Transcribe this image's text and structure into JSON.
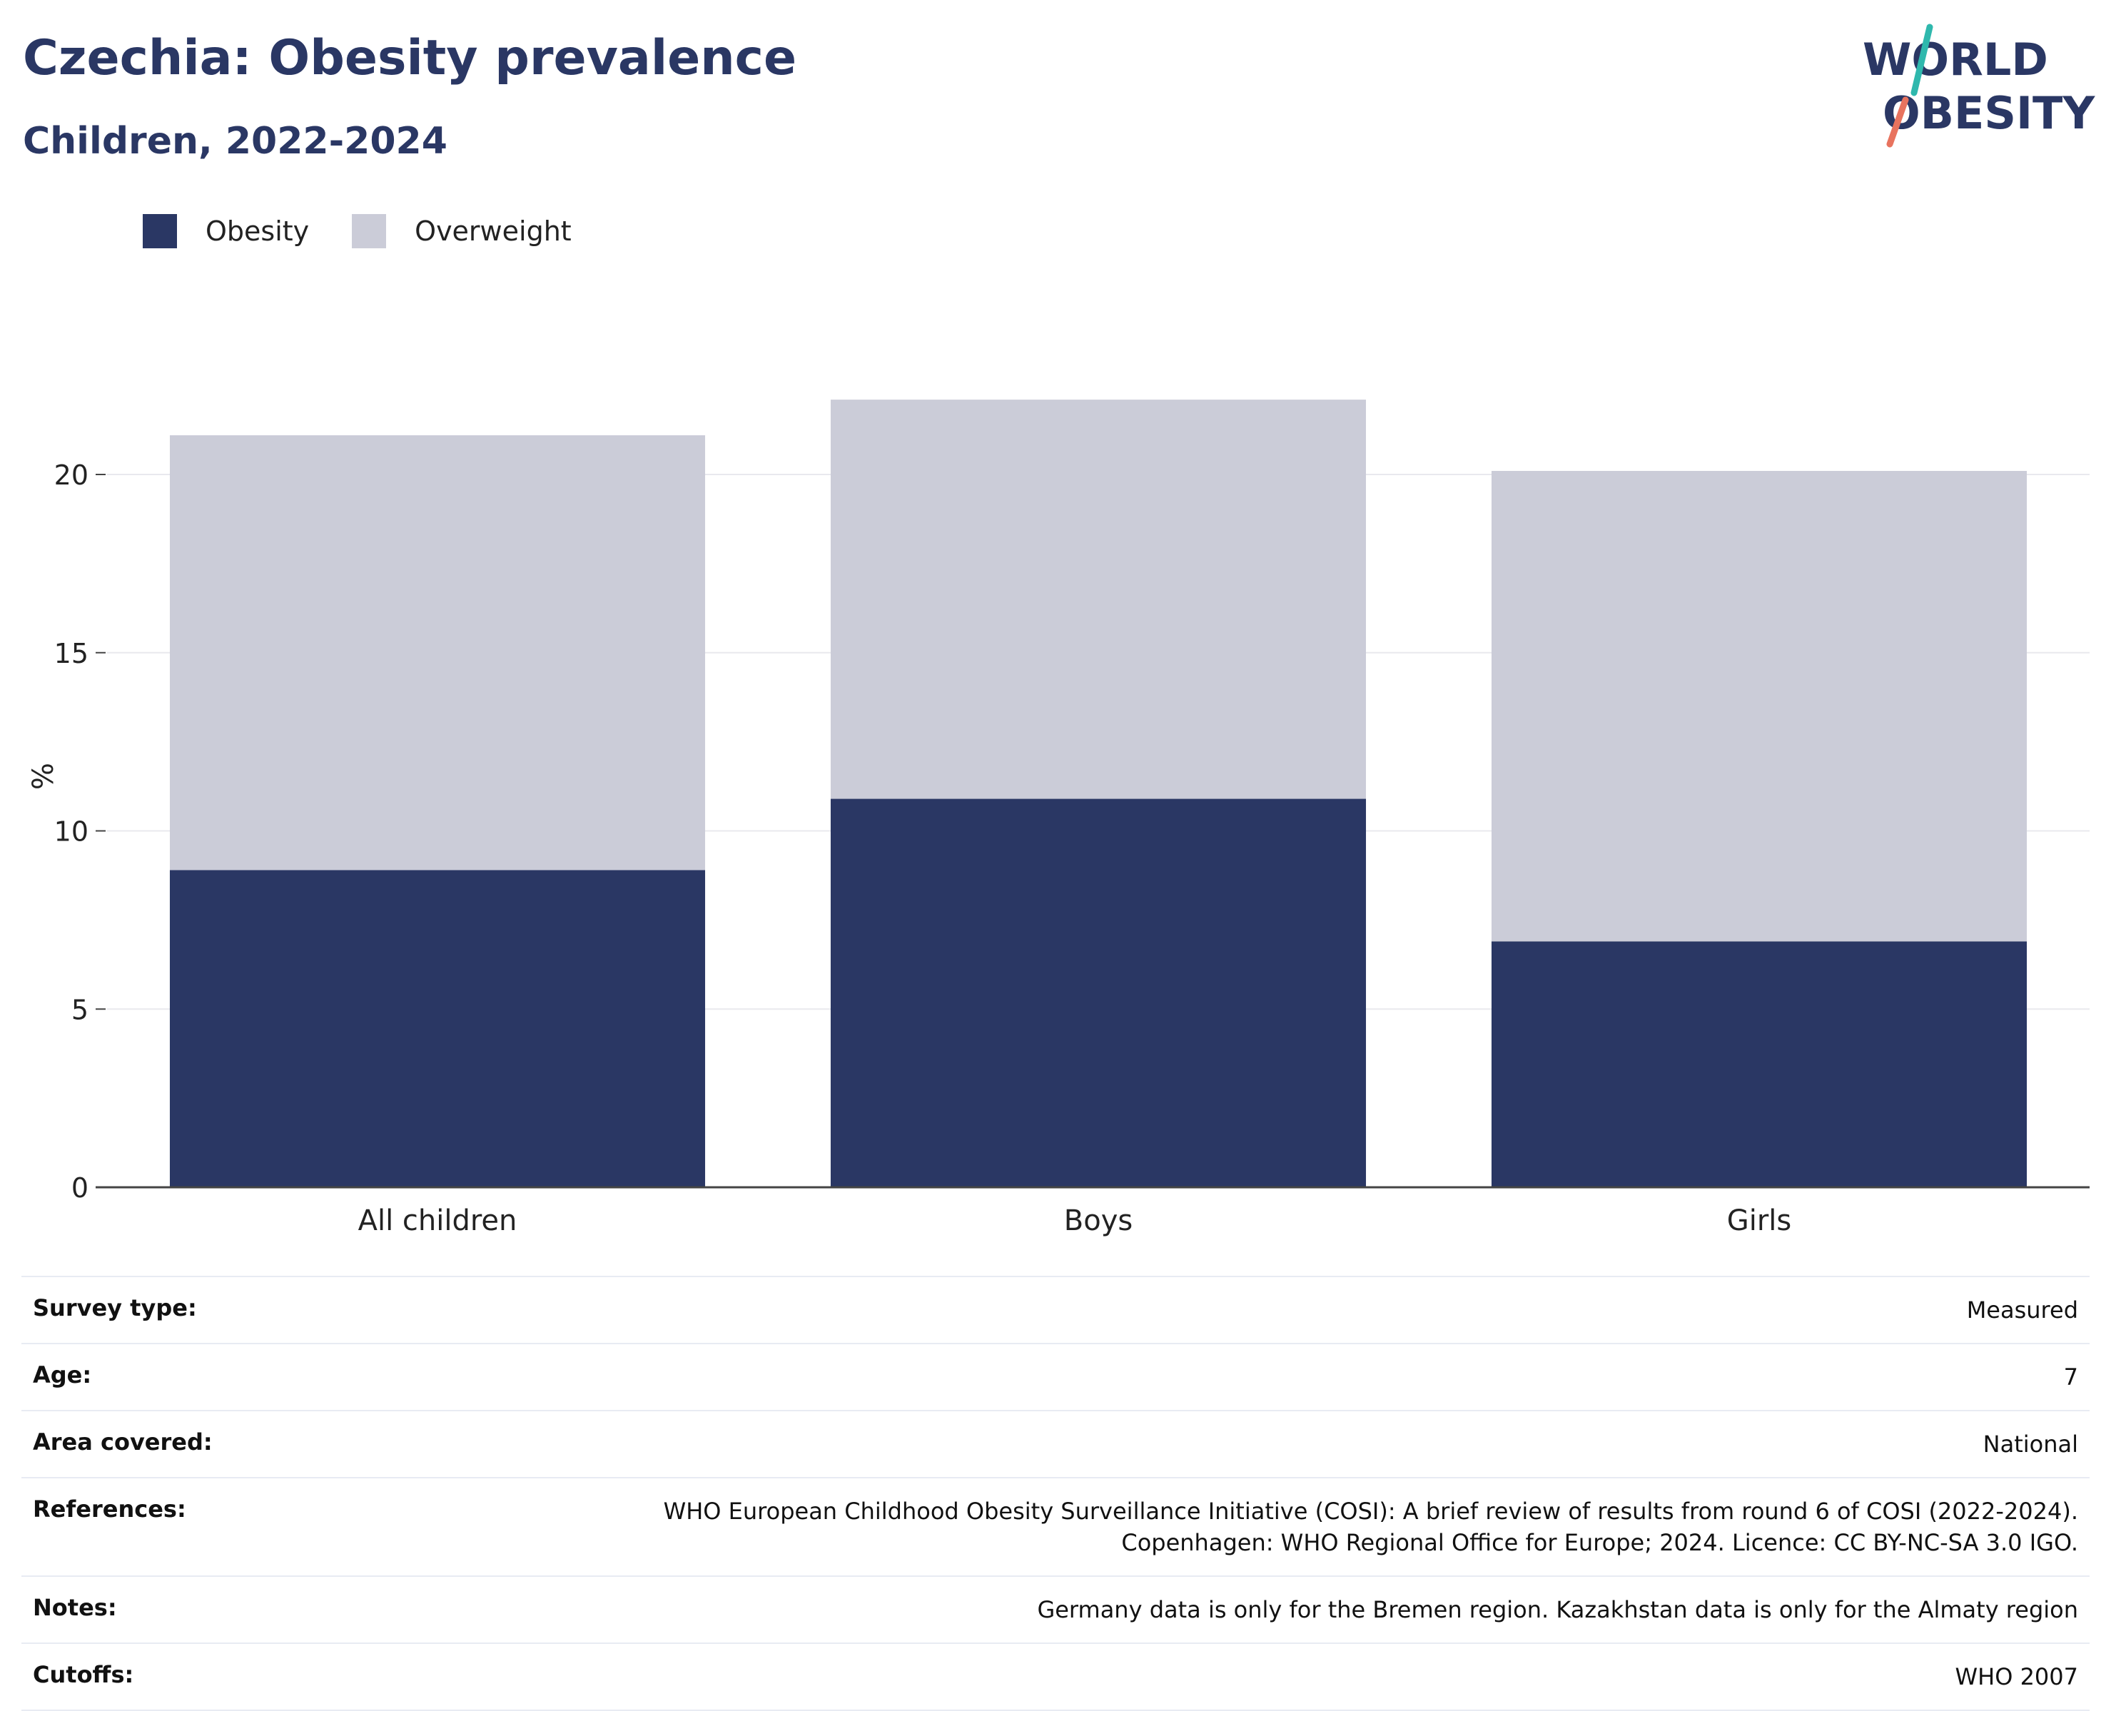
{
  "header": {
    "title": "Czechia: Obesity prevalence",
    "subtitle": "Children, 2022-2024"
  },
  "logo": {
    "line1": "WORLD",
    "line2": "OBESITY"
  },
  "colors": {
    "obesity": "#2a3764",
    "overweight": "#cbccd8",
    "grid": "#e9e9ee",
    "axis": "#444444",
    "logo_teal": "#2fb8ad",
    "logo_coral": "#e8735e"
  },
  "chart_data": {
    "type": "bar",
    "stacked": true,
    "categories": [
      "All children",
      "Boys",
      "Girls"
    ],
    "series": [
      {
        "name": "Obesity",
        "values": [
          8.9,
          10.9,
          6.9
        ]
      },
      {
        "name": "Overweight",
        "values": [
          12.2,
          11.2,
          13.2
        ]
      }
    ],
    "ylabel": "%",
    "ylim": [
      0,
      22
    ],
    "yticks": [
      0,
      5,
      10,
      15,
      20
    ],
    "legend_position": "top-left",
    "grid": true
  },
  "meta": [
    {
      "label": "Survey type:",
      "value": [
        "Measured"
      ]
    },
    {
      "label": "Age:",
      "value": [
        "7"
      ]
    },
    {
      "label": "Area covered:",
      "value": [
        "National"
      ]
    },
    {
      "label": "References:",
      "value": [
        "WHO European Childhood Obesity Surveillance Initiative (COSI): A brief review of results from round 6 of COSI (2022-2024).",
        "Copenhagen: WHO Regional Office for Europe; 2024. Licence: CC BY-NC-SA 3.0 IGO."
      ]
    },
    {
      "label": "Notes:",
      "value": [
        "Germany data is only for the Bremen region. Kazakhstan data is only for the Almaty region"
      ]
    },
    {
      "label": "Cutoffs:",
      "value": [
        "WHO 2007"
      ]
    }
  ]
}
